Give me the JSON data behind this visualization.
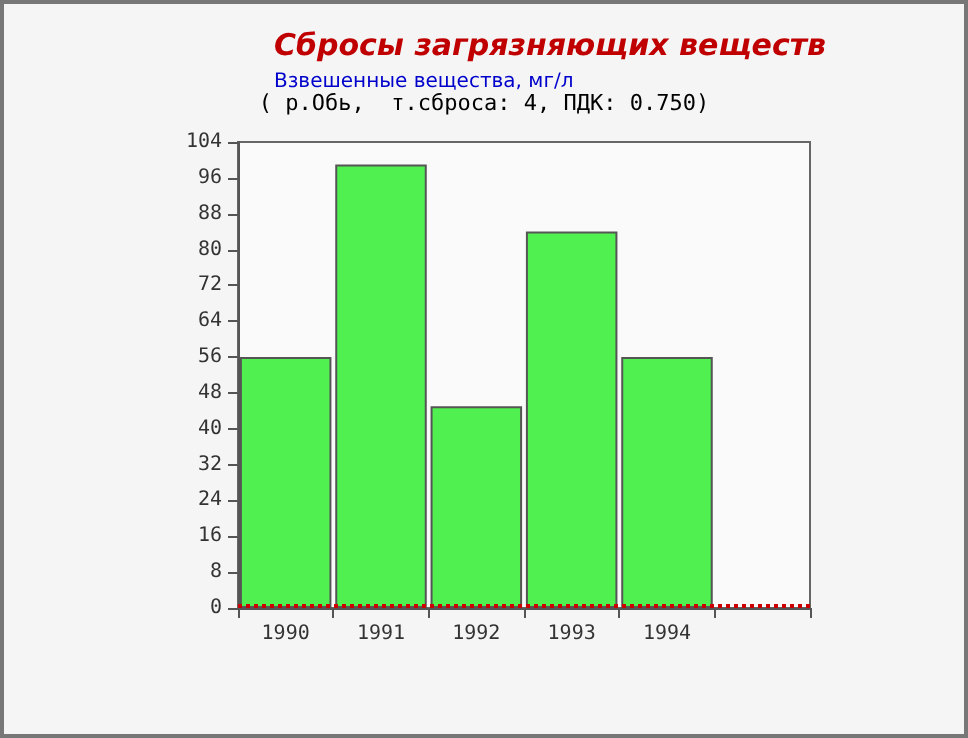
{
  "chart_data": {
    "type": "bar",
    "title": "Сбросы загрязняющих веществ",
    "subtitle": "Взвешенные вещества, мг/л",
    "annotations": [
      "( р.Обь,  т.сброса: 4, ПДК: 0.750)"
    ],
    "categories": [
      "1990",
      "1991",
      "1992",
      "1993",
      "1994",
      null
    ],
    "values": [
      56,
      99,
      45,
      84,
      56,
      null
    ],
    "color": "#50f050",
    "ylim": [
      0,
      104
    ],
    "yticks": [
      0,
      8,
      16,
      24,
      32,
      40,
      48,
      56,
      64,
      72,
      80,
      88,
      96,
      104
    ],
    "grid": false,
    "ref_lines": [
      {
        "axis": "y",
        "value": 0.75,
        "color": "#cc0000",
        "line_style": "dotted"
      }
    ]
  }
}
